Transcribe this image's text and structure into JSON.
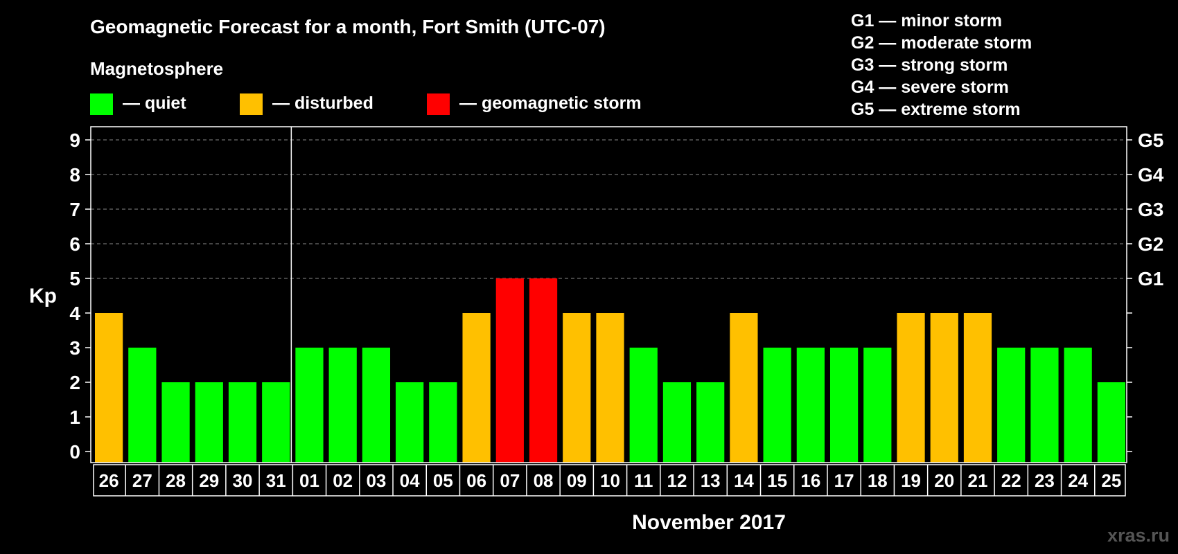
{
  "chart_data": {
    "type": "bar",
    "title": "Geomagnetic Forecast for a month, Fort Smith (UTC-07)",
    "ylabel": "Kp",
    "xlabel": "November 2017",
    "ylim": [
      0,
      9
    ],
    "yticks": [
      "0",
      "1",
      "2",
      "3",
      "4",
      "5",
      "6",
      "7",
      "8",
      "9"
    ],
    "right_ticks": [
      {
        "kp": 5,
        "label": "G1"
      },
      {
        "kp": 6,
        "label": "G2"
      },
      {
        "kp": 7,
        "label": "G3"
      },
      {
        "kp": 8,
        "label": "G4"
      },
      {
        "kp": 9,
        "label": "G5"
      }
    ],
    "categories": [
      "26",
      "27",
      "28",
      "29",
      "30",
      "31",
      "01",
      "02",
      "03",
      "04",
      "05",
      "06",
      "07",
      "08",
      "09",
      "10",
      "11",
      "12",
      "13",
      "14",
      "15",
      "16",
      "17",
      "18",
      "19",
      "20",
      "21",
      "22",
      "23",
      "24",
      "25"
    ],
    "values": [
      4,
      3,
      2,
      2,
      2,
      2,
      3,
      3,
      3,
      2,
      2,
      4,
      5,
      5,
      4,
      4,
      3,
      2,
      2,
      4,
      3,
      3,
      3,
      3,
      4,
      4,
      4,
      3,
      3,
      3,
      2
    ],
    "month_divider_after": "31",
    "grid": "dashed horizontal at 5-9",
    "legend": {
      "title": "Magnetosphere",
      "items": [
        {
          "label": "— quiet",
          "color": "#00ff00"
        },
        {
          "label": "— disturbed",
          "color": "#ffc000"
        },
        {
          "label": "— geomagnetic storm",
          "color": "#ff0000"
        }
      ]
    },
    "storm_levels": [
      "G1 — minor storm",
      "G2 — moderate storm",
      "G3 — strong storm",
      "G4 — severe storm",
      "G5 — extreme storm"
    ]
  },
  "watermark": "xras.ru"
}
